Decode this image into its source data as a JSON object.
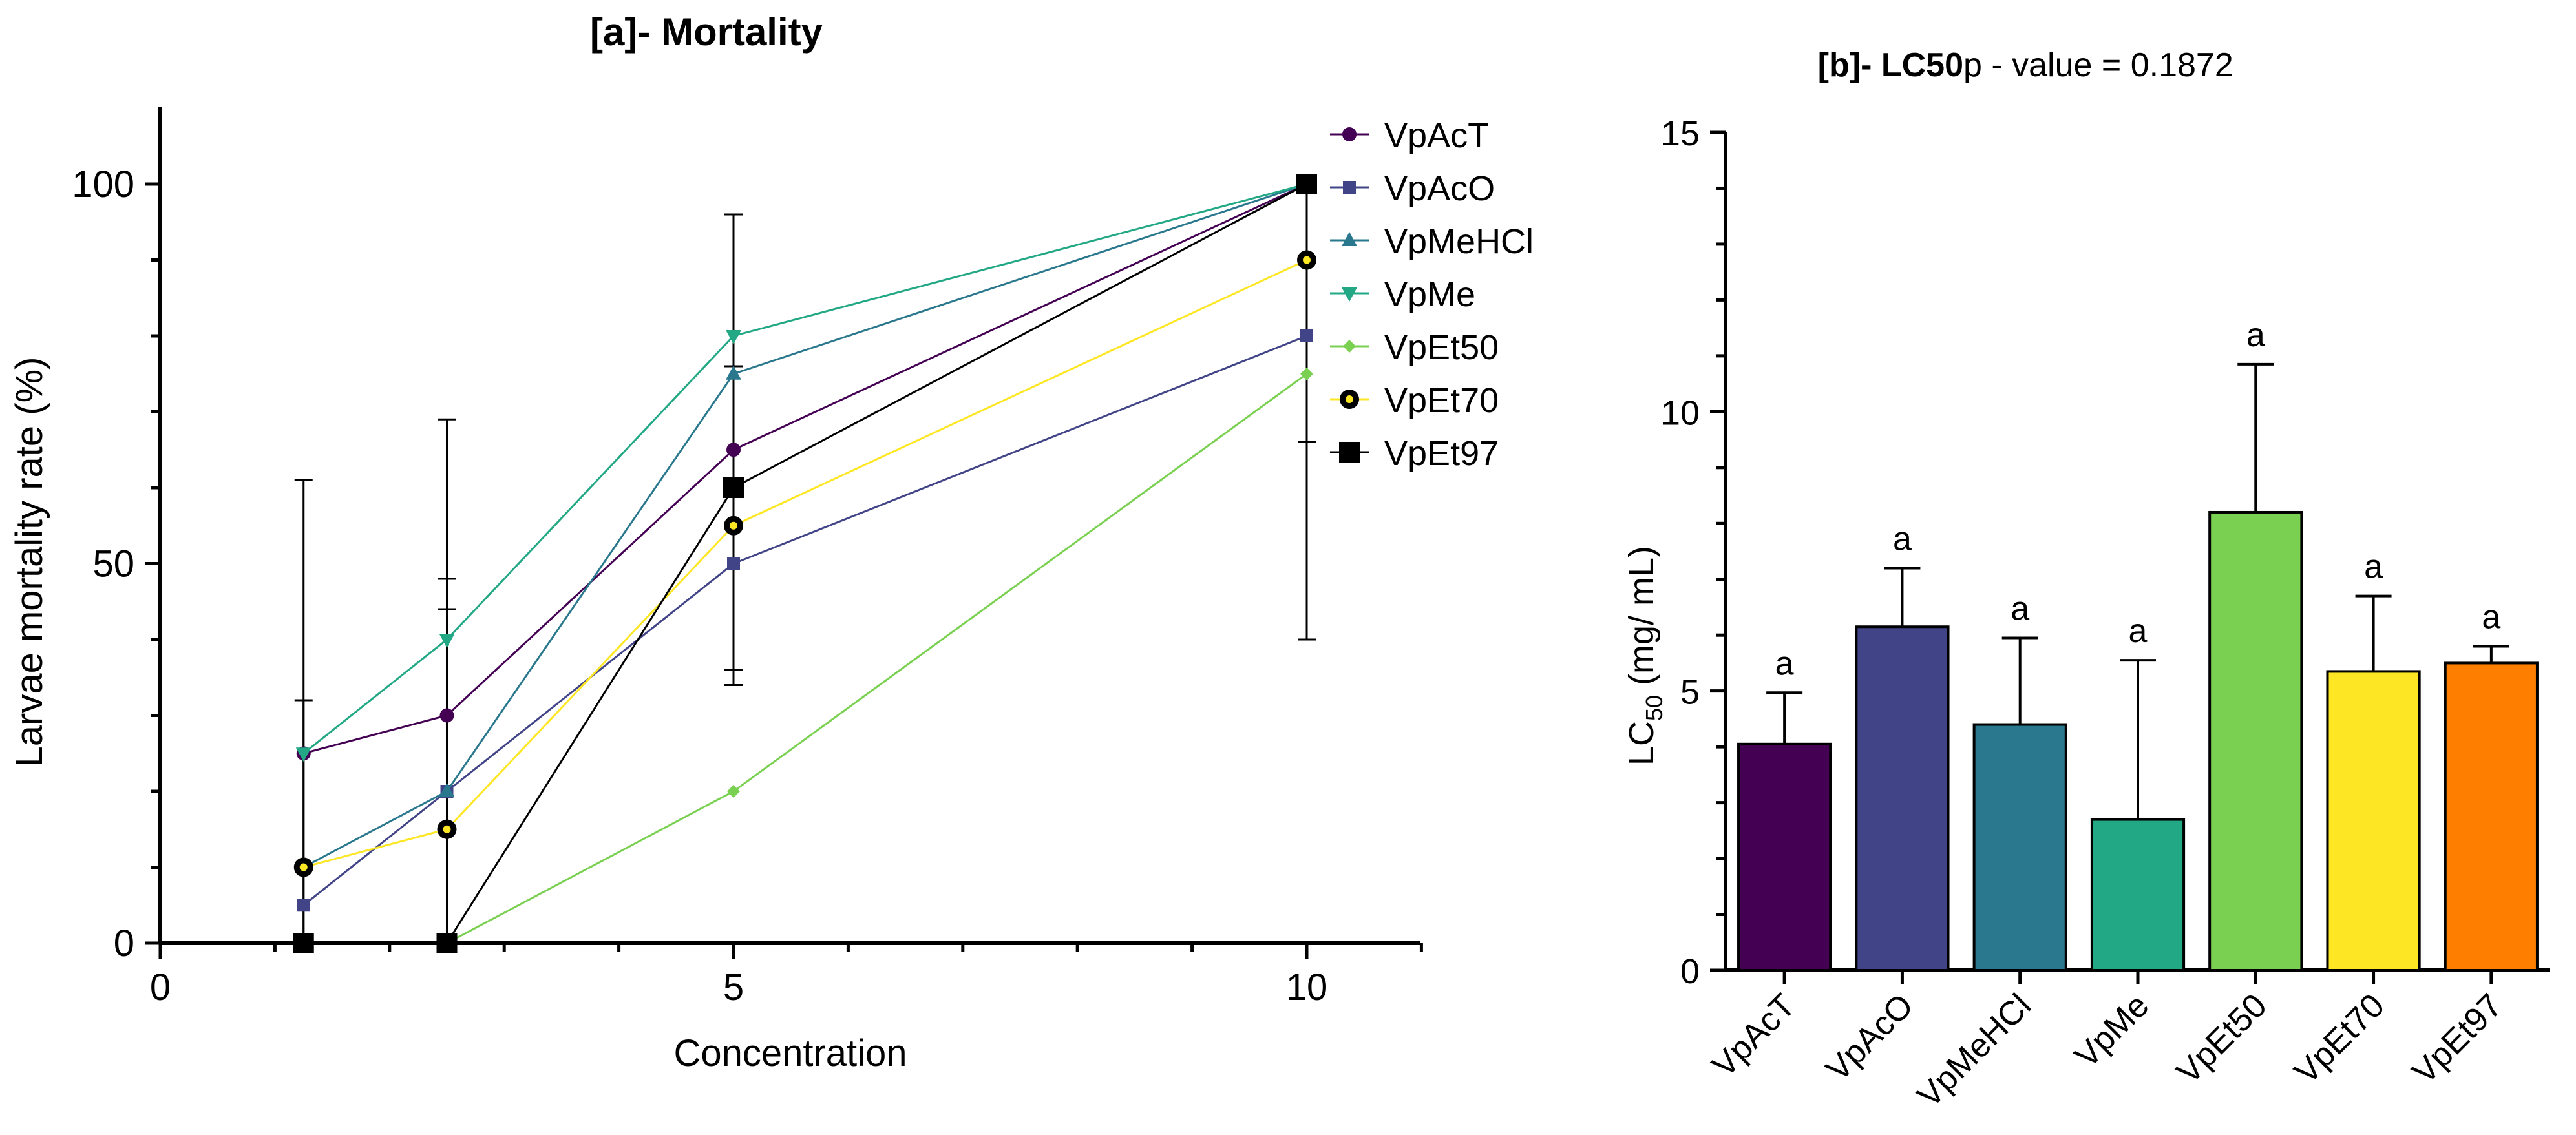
{
  "chart_data": [
    {
      "type": "line",
      "title": "[a]- Mortality",
      "xlabel": "Concentration",
      "ylabel": "Larvae mortality rate (%)",
      "xlim": [
        0,
        11
      ],
      "ylim": [
        0,
        110
      ],
      "x_ticks": [
        "0",
        "5",
        "10"
      ],
      "y_ticks": [
        "0",
        "50",
        "100"
      ],
      "legend_position": "right",
      "series": [
        {
          "name": "VpAcT",
          "color": "#440154",
          "marker": "circle",
          "x": [
            1.25,
            2.5,
            5,
            10
          ],
          "y": [
            25,
            30,
            65,
            100
          ]
        },
        {
          "name": "VpAcO",
          "color": "#414487",
          "marker": "square",
          "x": [
            1.25,
            2.5,
            5,
            10
          ],
          "y": [
            5,
            20,
            50,
            80
          ]
        },
        {
          "name": "VpMeHCl",
          "color": "#2a788e",
          "marker": "triangle-up",
          "x": [
            1.25,
            2.5,
            5,
            10
          ],
          "y": [
            10,
            20,
            75,
            100
          ]
        },
        {
          "name": "VpMe",
          "color": "#22a884",
          "marker": "triangle-down",
          "x": [
            1.25,
            2.5,
            5,
            10
          ],
          "y": [
            25,
            40,
            80,
            100
          ]
        },
        {
          "name": "VpEt50",
          "color": "#7ad151",
          "marker": "diamond",
          "x": [
            1.25,
            2.5,
            5,
            10
          ],
          "y": [
            0,
            0,
            20,
            75
          ]
        },
        {
          "name": "VpEt70",
          "color": "#fde725",
          "marker": "circle-ringed",
          "x": [
            1.25,
            2.5,
            5,
            10
          ],
          "y": [
            10,
            15,
            55,
            90
          ]
        },
        {
          "name": "VpEt97",
          "color": "#000000",
          "marker": "square-large",
          "x": [
            1.25,
            2.5,
            5,
            10
          ],
          "y": [
            0,
            0,
            60,
            100
          ]
        }
      ],
      "error_bars": [
        {
          "x": 1.25,
          "low": 0,
          "high": 61
        },
        {
          "x": 1.25,
          "low": 0,
          "high": 32
        },
        {
          "x": 2.5,
          "low": 0,
          "high": 69
        },
        {
          "x": 2.5,
          "low": 0,
          "high": 48
        },
        {
          "x": 2.5,
          "low": 0,
          "high": 44
        },
        {
          "x": 5,
          "low": 34,
          "high": 96
        },
        {
          "x": 5,
          "low": 36,
          "high": 76
        },
        {
          "x": 10,
          "low": 40,
          "high": 100
        },
        {
          "x": 10,
          "low": 66,
          "high": 100
        }
      ]
    },
    {
      "type": "bar",
      "title": "[b]- LC50",
      "subtitle": "p - value = 0.1872",
      "xlabel": "",
      "ylabel": "LC",
      "ylabel_sub": "50",
      "ylabel_unit": " (mg/ mL)",
      "ylim": [
        0,
        15
      ],
      "y_ticks": [
        "0",
        "5",
        "10",
        "15"
      ],
      "categories": [
        "VpAcT",
        "VpAcO",
        "VpMeHCl",
        "VpMe",
        "VpEt50",
        "VpEt70",
        "VpEt97"
      ],
      "values": [
        4.05,
        6.15,
        4.4,
        2.7,
        8.2,
        5.35,
        5.5
      ],
      "errors": [
        0.92,
        1.05,
        1.55,
        2.85,
        2.65,
        1.35,
        0.3
      ],
      "colors": [
        "#440154",
        "#414487",
        "#2a788e",
        "#22a884",
        "#7ad151",
        "#fde725",
        "#fe7f00"
      ],
      "labels": [
        "a",
        "a",
        "a",
        "a",
        "a",
        "a",
        "a"
      ]
    }
  ]
}
